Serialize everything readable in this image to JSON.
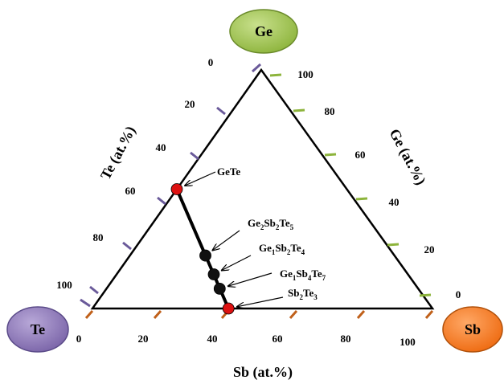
{
  "vertices": {
    "ge": {
      "label": "Ge",
      "fill": "#8db43c",
      "fill_light": "#c8e08c"
    },
    "te": {
      "label": "Te",
      "fill": "#7a64a8",
      "fill_light": "#b8a8d8"
    },
    "sb": {
      "label": "Sb",
      "fill": "#ee6a10",
      "fill_light": "#ffa866"
    }
  },
  "axes": {
    "te": {
      "title": "Te (at.%)",
      "ticks": [
        "0",
        "20",
        "40",
        "60",
        "80",
        "100"
      ],
      "tick_color": "#6a5a9a"
    },
    "ge": {
      "title": "Ge (at.%)",
      "ticks": [
        "100",
        "80",
        "60",
        "40",
        "20",
        "0"
      ],
      "tick_color": "#8db43c"
    },
    "sb": {
      "title": "Sb (at.%)",
      "ticks": [
        "0",
        "20",
        "40",
        "60",
        "80",
        "100"
      ],
      "tick_color": "#c0601a"
    }
  },
  "compounds": [
    {
      "name": "GeTe",
      "formula": [
        [
          "GeTe",
          ""
        ]
      ],
      "ge": 50,
      "sb": 0,
      "te": 50,
      "marker": "#dd1111"
    },
    {
      "name": "Ge2Sb2Te5",
      "formula": [
        [
          "Ge",
          ""
        ],
        [
          "2",
          "sub"
        ],
        [
          "Sb",
          ""
        ],
        [
          "2",
          "sub"
        ],
        [
          "Te",
          ""
        ],
        [
          "5",
          "sub"
        ]
      ],
      "ge": 22.2,
      "sb": 22.2,
      "te": 55.6,
      "marker": "#111111"
    },
    {
      "name": "Ge1Sb2Te4",
      "formula": [
        [
          "Ge",
          ""
        ],
        [
          "1",
          "sub"
        ],
        [
          "Sb",
          ""
        ],
        [
          "2",
          "sub"
        ],
        [
          "Te",
          ""
        ],
        [
          "4",
          "sub"
        ]
      ],
      "ge": 14.3,
      "sb": 28.6,
      "te": 57.1,
      "marker": "#111111"
    },
    {
      "name": "Ge1Sb4Te7",
      "formula": [
        [
          "Ge",
          ""
        ],
        [
          "1",
          "sub"
        ],
        [
          "Sb",
          ""
        ],
        [
          "4",
          "sub"
        ],
        [
          "Te",
          ""
        ],
        [
          "7",
          "sub"
        ]
      ],
      "ge": 8.3,
      "sb": 33.3,
      "te": 58.4,
      "marker": "#111111"
    },
    {
      "name": "Sb2Te3",
      "formula": [
        [
          "Sb",
          ""
        ],
        [
          "2",
          "sub"
        ],
        [
          "Te",
          ""
        ],
        [
          "3",
          "sub"
        ]
      ],
      "ge": 0,
      "sb": 40,
      "te": 60,
      "marker": "#dd1111"
    }
  ]
}
